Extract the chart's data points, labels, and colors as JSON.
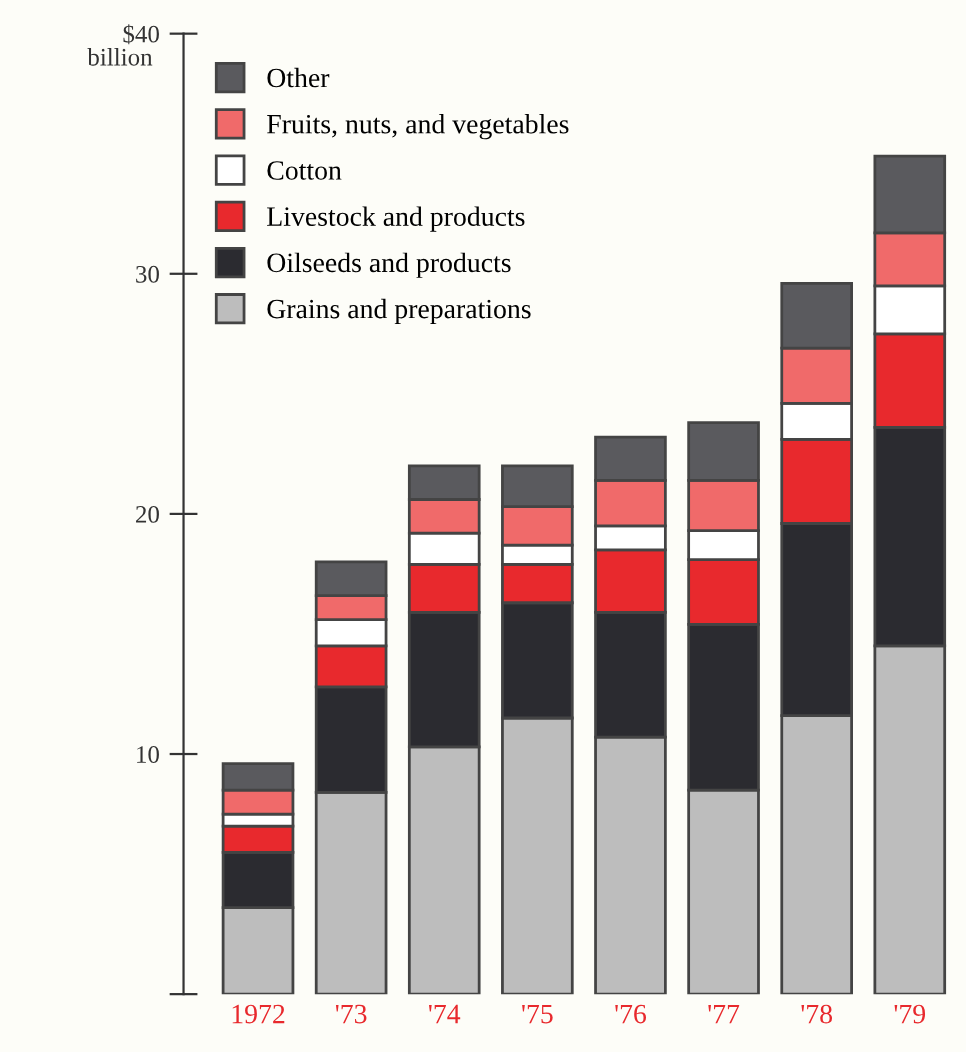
{
  "chart_data": {
    "type": "bar",
    "stacked": true,
    "categories": [
      "1972",
      "'73",
      "'74",
      "'75",
      "'76",
      "'77",
      "'78",
      "'79"
    ],
    "series": [
      {
        "name": "Grains and preparations",
        "color": "#bdbdbd",
        "values": [
          3.6,
          8.4,
          10.3,
          11.5,
          10.7,
          8.5,
          11.6,
          14.5
        ]
      },
      {
        "name": "Oilseeds and products",
        "color": "#2b2b30",
        "values": [
          2.3,
          4.4,
          5.6,
          4.8,
          5.2,
          6.9,
          8.0,
          9.1
        ]
      },
      {
        "name": "Livestock and products",
        "color": "#e8292d",
        "values": [
          1.1,
          1.7,
          2.0,
          1.6,
          2.6,
          2.7,
          3.5,
          3.9
        ]
      },
      {
        "name": "Cotton",
        "color": "#ffffff",
        "values": [
          0.5,
          1.1,
          1.3,
          0.8,
          1.0,
          1.2,
          1.5,
          2.0
        ]
      },
      {
        "name": "Fruits, nuts, and vegetables",
        "color": "#f06a6a",
        "values": [
          1.0,
          1.0,
          1.4,
          1.6,
          1.9,
          2.1,
          2.3,
          2.2
        ]
      },
      {
        "name": "Other",
        "color": "#5a5a5e",
        "values": [
          1.1,
          1.4,
          1.4,
          1.7,
          1.8,
          2.4,
          2.7,
          3.2
        ]
      }
    ],
    "ylim": [
      0,
      40
    ],
    "yticks": [
      {
        "value": 0,
        "label": null
      },
      10,
      20,
      30,
      {
        "value": 40,
        "label": "$40"
      }
    ],
    "ylabel": "billion",
    "grid": false,
    "legend": "top left"
  }
}
